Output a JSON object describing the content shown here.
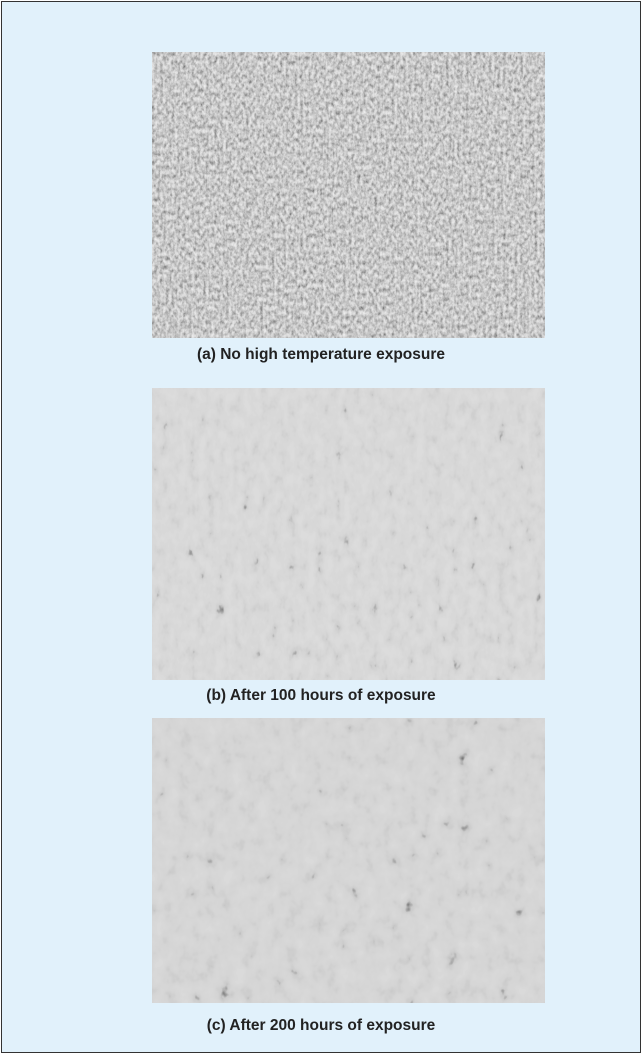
{
  "figure": {
    "panels": [
      {
        "caption": "(a) No high temperature exposure"
      },
      {
        "caption": "(b) After 100 hours of exposure"
      },
      {
        "caption": "(c) After 200 hours of exposure"
      }
    ]
  }
}
